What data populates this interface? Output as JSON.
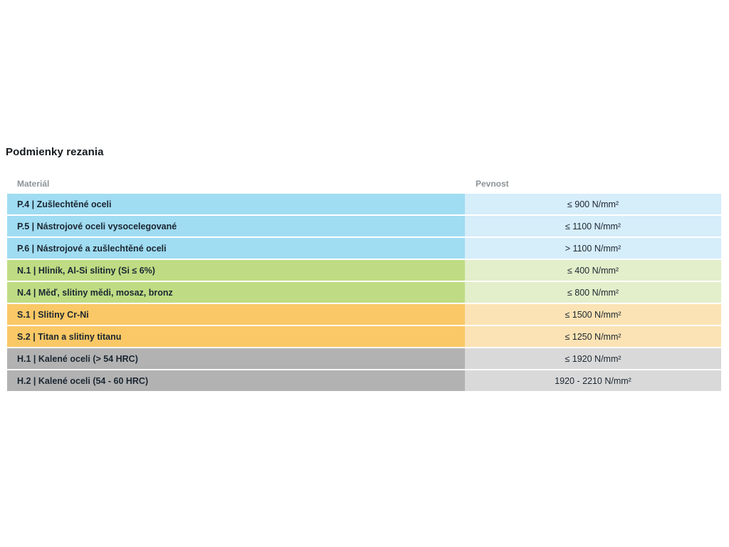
{
  "page": {
    "title": "Podmienky rezania"
  },
  "table": {
    "columns": {
      "material": "Materiál",
      "strength": "Pevnost"
    },
    "group_colors": {
      "P": {
        "left": "#a0dcf2",
        "right": "#d6edfa"
      },
      "N": {
        "left": "#bfdc84",
        "right": "#e3eecb"
      },
      "S": {
        "left": "#fac866",
        "right": "#fce3b5"
      },
      "H": {
        "left": "#b2b2b3",
        "right": "#d9d9d9"
      }
    },
    "rows": [
      {
        "group": "P",
        "material": "P.4 | Zušlechtěné oceli",
        "strength": "≤ 900 N/mm²"
      },
      {
        "group": "P",
        "material": "P.5 | Nástrojové oceli vysocelegované",
        "strength": "≤ 1100 N/mm²"
      },
      {
        "group": "P",
        "material": "P.6 | Nástrojové a zušlechtěné oceli",
        "strength": "> 1100 N/mm²"
      },
      {
        "group": "N",
        "material": "N.1 | Hliník, Al-Si slitiny (Si ≤ 6%)",
        "strength": "≤ 400 N/mm²"
      },
      {
        "group": "N",
        "material": "N.4 | Měď, slitiny mědi, mosaz, bronz",
        "strength": "≤ 800 N/mm²"
      },
      {
        "group": "S",
        "material": "S.1 | Slitiny Cr-Ni",
        "strength": "≤ 1500 N/mm²"
      },
      {
        "group": "S",
        "material": "S.2 | Titan a slitiny titanu",
        "strength": "≤ 1250 N/mm²"
      },
      {
        "group": "H",
        "material": "H.1 | Kalené oceli (> 54 HRC)",
        "strength": "≤ 1920 N/mm²"
      },
      {
        "group": "H",
        "material": "H.2 | Kalené oceli (54 - 60 HRC)",
        "strength": "1920 - 2210 N/mm²"
      }
    ]
  }
}
